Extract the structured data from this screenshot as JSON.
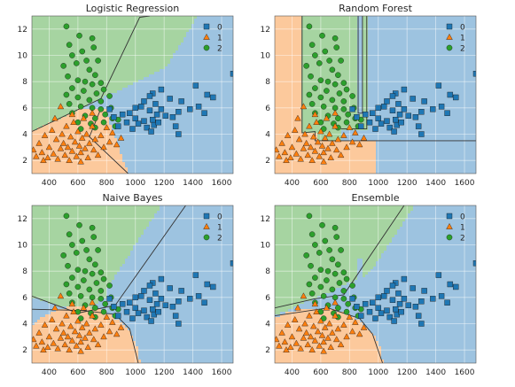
{
  "colors": {
    "class_0": "#1f77b4",
    "class_1": "#ff7f0e",
    "class_2": "#2ca02c",
    "region_0": "#9dc3e0",
    "region_1": "#fcc99c",
    "region_2": "#a6d4a1"
  },
  "chart_data": [
    {
      "type": "scatter",
      "title": "Logistic Regression",
      "xlim": [
        280,
        1680
      ],
      "ylim": [
        1.0,
        13.0
      ],
      "xticks": [
        400,
        600,
        800,
        1000,
        1200,
        1400,
        1600
      ],
      "yticks": [
        2,
        4,
        6,
        8,
        10,
        12
      ],
      "grid": true,
      "legend": {
        "placement": "top-right",
        "entries": [
          "0",
          "1",
          "2"
        ]
      }
    },
    {
      "type": "scatter",
      "title": "Random Forest",
      "xlim": [
        280,
        1680
      ],
      "ylim": [
        1.0,
        13.0
      ],
      "xticks": [
        400,
        600,
        800,
        1000,
        1200,
        1400,
        1600
      ],
      "yticks": [
        2,
        4,
        6,
        8,
        10,
        12
      ],
      "grid": true,
      "legend": {
        "placement": "top-right",
        "entries": [
          "0",
          "1",
          "2"
        ]
      }
    },
    {
      "type": "scatter",
      "title": "Naive Bayes",
      "xlim": [
        280,
        1680
      ],
      "ylim": [
        1.0,
        13.0
      ],
      "xticks": [
        400,
        600,
        800,
        1000,
        1200,
        1400,
        1600
      ],
      "yticks": [
        2,
        4,
        6,
        8,
        10,
        12
      ],
      "grid": true,
      "legend": {
        "placement": "top-right",
        "entries": [
          "0",
          "1",
          "2"
        ]
      }
    },
    {
      "type": "scatter",
      "title": "Ensemble",
      "xlim": [
        280,
        1680
      ],
      "ylim": [
        1.0,
        13.0
      ],
      "xticks": [
        400,
        600,
        800,
        1000,
        1200,
        1400,
        1600
      ],
      "yticks": [
        2,
        4,
        6,
        8,
        10,
        12
      ],
      "grid": true,
      "legend": {
        "placement": "top-right",
        "entries": [
          "0",
          "1",
          "2"
        ]
      }
    }
  ],
  "points": [
    {
      "x": 520,
      "y": 12.2,
      "c": 2
    },
    {
      "x": 540,
      "y": 10.8,
      "c": 2
    },
    {
      "x": 610,
      "y": 11.5,
      "c": 2
    },
    {
      "x": 700,
      "y": 11.3,
      "c": 2
    },
    {
      "x": 710,
      "y": 10.6,
      "c": 2
    },
    {
      "x": 560,
      "y": 10.0,
      "c": 2
    },
    {
      "x": 630,
      "y": 10.3,
      "c": 2
    },
    {
      "x": 660,
      "y": 9.6,
      "c": 2
    },
    {
      "x": 740,
      "y": 9.6,
      "c": 2
    },
    {
      "x": 500,
      "y": 9.2,
      "c": 2
    },
    {
      "x": 590,
      "y": 9.4,
      "c": 2
    },
    {
      "x": 680,
      "y": 8.9,
      "c": 2
    },
    {
      "x": 720,
      "y": 8.5,
      "c": 2
    },
    {
      "x": 530,
      "y": 8.4,
      "c": 2
    },
    {
      "x": 600,
      "y": 8.1,
      "c": 2
    },
    {
      "x": 650,
      "y": 8.0,
      "c": 2
    },
    {
      "x": 700,
      "y": 7.8,
      "c": 2
    },
    {
      "x": 760,
      "y": 7.9,
      "c": 2
    },
    {
      "x": 560,
      "y": 7.5,
      "c": 2
    },
    {
      "x": 640,
      "y": 7.3,
      "c": 2
    },
    {
      "x": 730,
      "y": 7.1,
      "c": 2
    },
    {
      "x": 780,
      "y": 7.4,
      "c": 2
    },
    {
      "x": 520,
      "y": 7.0,
      "c": 2
    },
    {
      "x": 600,
      "y": 6.8,
      "c": 2
    },
    {
      "x": 680,
      "y": 6.6,
      "c": 2
    },
    {
      "x": 760,
      "y": 6.5,
      "c": 2
    },
    {
      "x": 820,
      "y": 6.9,
      "c": 2
    },
    {
      "x": 540,
      "y": 6.3,
      "c": 2
    },
    {
      "x": 620,
      "y": 6.1,
      "c": 2
    },
    {
      "x": 700,
      "y": 6.0,
      "c": 2
    },
    {
      "x": 760,
      "y": 5.9,
      "c": 2
    },
    {
      "x": 830,
      "y": 6.0,
      "c": 2
    },
    {
      "x": 560,
      "y": 5.6,
      "c": 2
    },
    {
      "x": 650,
      "y": 5.4,
      "c": 2
    },
    {
      "x": 720,
      "y": 5.2,
      "c": 2
    },
    {
      "x": 790,
      "y": 5.5,
      "c": 2
    },
    {
      "x": 840,
      "y": 5.2,
      "c": 2
    },
    {
      "x": 600,
      "y": 4.9,
      "c": 2
    },
    {
      "x": 690,
      "y": 4.8,
      "c": 2
    },
    {
      "x": 780,
      "y": 4.9,
      "c": 2
    },
    {
      "x": 880,
      "y": 5.1,
      "c": 2
    },
    {
      "x": 620,
      "y": 4.4,
      "c": 2
    },
    {
      "x": 720,
      "y": 4.5,
      "c": 2
    },
    {
      "x": 860,
      "y": 4.6,
      "c": 2
    },
    {
      "x": 820,
      "y": 5.9,
      "c": 0
    },
    {
      "x": 850,
      "y": 5.3,
      "c": 0
    },
    {
      "x": 880,
      "y": 4.6,
      "c": 0
    },
    {
      "x": 910,
      "y": 5.5,
      "c": 0
    },
    {
      "x": 940,
      "y": 4.9,
      "c": 0
    },
    {
      "x": 960,
      "y": 5.6,
      "c": 0
    },
    {
      "x": 980,
      "y": 4.4,
      "c": 0
    },
    {
      "x": 1000,
      "y": 5.2,
      "c": 0
    },
    {
      "x": 1020,
      "y": 4.8,
      "c": 0
    },
    {
      "x": 1040,
      "y": 6.1,
      "c": 0
    },
    {
      "x": 1060,
      "y": 5.0,
      "c": 0
    },
    {
      "x": 1080,
      "y": 4.5,
      "c": 0
    },
    {
      "x": 1100,
      "y": 5.8,
      "c": 0
    },
    {
      "x": 1110,
      "y": 4.2,
      "c": 0
    },
    {
      "x": 1120,
      "y": 5.1,
      "c": 0
    },
    {
      "x": 1130,
      "y": 4.7,
      "c": 0
    },
    {
      "x": 1140,
      "y": 6.3,
      "c": 0
    },
    {
      "x": 1150,
      "y": 5.5,
      "c": 0
    },
    {
      "x": 1160,
      "y": 4.9,
      "c": 0
    },
    {
      "x": 1180,
      "y": 5.9,
      "c": 0
    },
    {
      "x": 1210,
      "y": 5.4,
      "c": 0
    },
    {
      "x": 1240,
      "y": 6.7,
      "c": 0
    },
    {
      "x": 1260,
      "y": 5.3,
      "c": 0
    },
    {
      "x": 1280,
      "y": 4.6,
      "c": 0
    },
    {
      "x": 1300,
      "y": 5.7,
      "c": 0
    },
    {
      "x": 1300,
      "y": 4.0,
      "c": 0
    },
    {
      "x": 1320,
      "y": 6.5,
      "c": 0
    },
    {
      "x": 1380,
      "y": 5.9,
      "c": 0
    },
    {
      "x": 1440,
      "y": 6.1,
      "c": 0
    },
    {
      "x": 1480,
      "y": 5.6,
      "c": 0
    },
    {
      "x": 1500,
      "y": 7.0,
      "c": 0
    },
    {
      "x": 1540,
      "y": 6.8,
      "c": 0
    },
    {
      "x": 1680,
      "y": 8.6,
      "c": 0
    },
    {
      "x": 1120,
      "y": 7.1,
      "c": 0
    },
    {
      "x": 1180,
      "y": 7.4,
      "c": 0
    },
    {
      "x": 1420,
      "y": 7.7,
      "c": 0
    },
    {
      "x": 1060,
      "y": 6.5,
      "c": 0
    },
    {
      "x": 1000,
      "y": 6.0,
      "c": 0
    },
    {
      "x": 1100,
      "y": 6.9,
      "c": 0
    },
    {
      "x": 290,
      "y": 2.8,
      "c": 1
    },
    {
      "x": 310,
      "y": 2.3,
      "c": 1
    },
    {
      "x": 330,
      "y": 3.3,
      "c": 1
    },
    {
      "x": 350,
      "y": 2.6,
      "c": 1
    },
    {
      "x": 370,
      "y": 3.9,
      "c": 1
    },
    {
      "x": 390,
      "y": 2.2,
      "c": 1
    },
    {
      "x": 400,
      "y": 3.0,
      "c": 1
    },
    {
      "x": 420,
      "y": 4.3,
      "c": 1
    },
    {
      "x": 430,
      "y": 2.5,
      "c": 1
    },
    {
      "x": 450,
      "y": 3.6,
      "c": 1
    },
    {
      "x": 460,
      "y": 2.1,
      "c": 1
    },
    {
      "x": 480,
      "y": 2.9,
      "c": 1
    },
    {
      "x": 490,
      "y": 4.0,
      "c": 1
    },
    {
      "x": 500,
      "y": 3.3,
      "c": 1
    },
    {
      "x": 510,
      "y": 2.4,
      "c": 1
    },
    {
      "x": 520,
      "y": 4.6,
      "c": 1
    },
    {
      "x": 530,
      "y": 3.0,
      "c": 1
    },
    {
      "x": 540,
      "y": 2.0,
      "c": 1
    },
    {
      "x": 550,
      "y": 3.8,
      "c": 1
    },
    {
      "x": 560,
      "y": 2.7,
      "c": 1
    },
    {
      "x": 570,
      "y": 4.9,
      "c": 1
    },
    {
      "x": 580,
      "y": 3.4,
      "c": 1
    },
    {
      "x": 590,
      "y": 2.3,
      "c": 1
    },
    {
      "x": 600,
      "y": 4.2,
      "c": 1
    },
    {
      "x": 610,
      "y": 3.1,
      "c": 1
    },
    {
      "x": 620,
      "y": 2.6,
      "c": 1
    },
    {
      "x": 630,
      "y": 3.7,
      "c": 1
    },
    {
      "x": 640,
      "y": 5.2,
      "c": 1
    },
    {
      "x": 650,
      "y": 2.9,
      "c": 1
    },
    {
      "x": 660,
      "y": 4.0,
      "c": 1
    },
    {
      "x": 670,
      "y": 2.2,
      "c": 1
    },
    {
      "x": 680,
      "y": 3.3,
      "c": 1
    },
    {
      "x": 700,
      "y": 4.6,
      "c": 1
    },
    {
      "x": 710,
      "y": 2.8,
      "c": 1
    },
    {
      "x": 720,
      "y": 3.6,
      "c": 1
    },
    {
      "x": 740,
      "y": 2.4,
      "c": 1
    },
    {
      "x": 760,
      "y": 3.9,
      "c": 1
    },
    {
      "x": 780,
      "y": 3.0,
      "c": 1
    },
    {
      "x": 800,
      "y": 4.5,
      "c": 1
    },
    {
      "x": 820,
      "y": 3.4,
      "c": 1
    },
    {
      "x": 840,
      "y": 4.1,
      "c": 1
    },
    {
      "x": 870,
      "y": 3.2,
      "c": 1
    },
    {
      "x": 900,
      "y": 3.7,
      "c": 1
    },
    {
      "x": 480,
      "y": 6.1,
      "c": 1
    },
    {
      "x": 560,
      "y": 5.5,
      "c": 1
    },
    {
      "x": 440,
      "y": 5.2,
      "c": 1
    },
    {
      "x": 700,
      "y": 5.6,
      "c": 1
    },
    {
      "x": 360,
      "y": 2.0,
      "c": 1
    },
    {
      "x": 620,
      "y": 1.9,
      "c": 1
    }
  ]
}
